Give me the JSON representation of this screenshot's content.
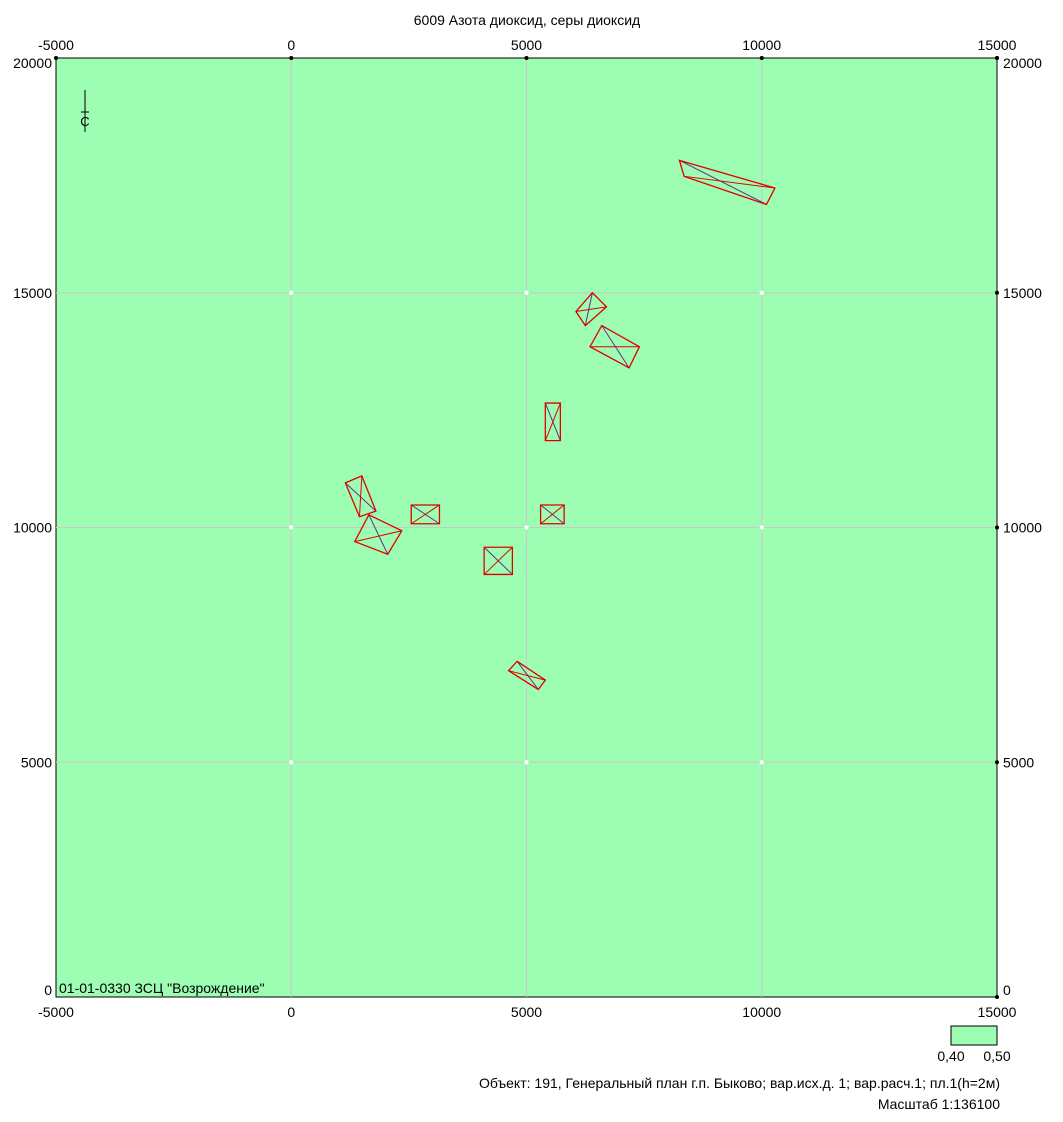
{
  "title": "6009 Азота диоксид, серы диоксид",
  "axes": {
    "x_ticks": [
      -5000,
      0,
      5000,
      10000,
      15000
    ],
    "x_tick_labels": [
      "-5000",
      "0",
      "5000",
      "10000",
      "15000"
    ],
    "y_ticks": [
      0,
      5000,
      10000,
      15000,
      20000
    ],
    "y_tick_labels": [
      "0",
      "5000",
      "10000",
      "15000",
      "20000"
    ],
    "xlim": [
      -5000,
      15000
    ],
    "ylim": [
      0,
      20000
    ],
    "grid": true
  },
  "colors": {
    "background_fill": "#9dfdb2",
    "grid": "#c8c8c8",
    "source_outline": "#e00000",
    "source_inner": "#6a2d8a"
  },
  "north_arrow": {
    "label": "С",
    "icon": "north-arrow-icon"
  },
  "corner_caption": "01-01-0330 ЗСЦ  \"Возрождение\"",
  "legend": {
    "min_label": "0,40",
    "max_label": "0,50",
    "fill": "#9dfdb2"
  },
  "footer": {
    "object_line": "Объект: 191, Генеральный план г.п. Быково; вар.исх.д. 1; вар.расч.1; пл.1(h=2м)",
    "scale_line": "Масштаб 1:136100"
  },
  "sources": [
    {
      "id": "src-1",
      "corners": [
        [
          8250,
          17820
        ],
        [
          10280,
          17230
        ],
        [
          10100,
          16880
        ],
        [
          8350,
          17480
        ]
      ]
    },
    {
      "id": "src-2",
      "corners": [
        [
          6400,
          15000
        ],
        [
          6700,
          14700
        ],
        [
          6250,
          14300
        ],
        [
          6050,
          14600
        ]
      ]
    },
    {
      "id": "src-3",
      "corners": [
        [
          6600,
          14300
        ],
        [
          7400,
          13850
        ],
        [
          7180,
          13400
        ],
        [
          6350,
          13850
        ]
      ]
    },
    {
      "id": "src-4",
      "corners": [
        [
          5400,
          12650
        ],
        [
          5720,
          12650
        ],
        [
          5720,
          11850
        ],
        [
          5400,
          11850
        ]
      ]
    },
    {
      "id": "src-5",
      "corners": [
        [
          1150,
          10950
        ],
        [
          1500,
          11100
        ],
        [
          1800,
          10350
        ],
        [
          1450,
          10230
        ]
      ]
    },
    {
      "id": "src-6",
      "corners": [
        [
          2550,
          10480
        ],
        [
          3150,
          10480
        ],
        [
          3150,
          10080
        ],
        [
          2550,
          10080
        ]
      ]
    },
    {
      "id": "src-7",
      "corners": [
        [
          5300,
          10480
        ],
        [
          5800,
          10480
        ],
        [
          5800,
          10080
        ],
        [
          5300,
          10080
        ]
      ]
    },
    {
      "id": "src-8",
      "corners": [
        [
          1650,
          10270
        ],
        [
          2350,
          9930
        ],
        [
          2050,
          9430
        ],
        [
          1350,
          9700
        ]
      ]
    },
    {
      "id": "src-9",
      "corners": [
        [
          4100,
          9580
        ],
        [
          4700,
          9580
        ],
        [
          4700,
          9000
        ],
        [
          4100,
          9000
        ]
      ]
    },
    {
      "id": "src-10",
      "corners": [
        [
          4800,
          7150
        ],
        [
          5400,
          6750
        ],
        [
          5250,
          6550
        ],
        [
          4620,
          6950
        ]
      ]
    }
  ]
}
